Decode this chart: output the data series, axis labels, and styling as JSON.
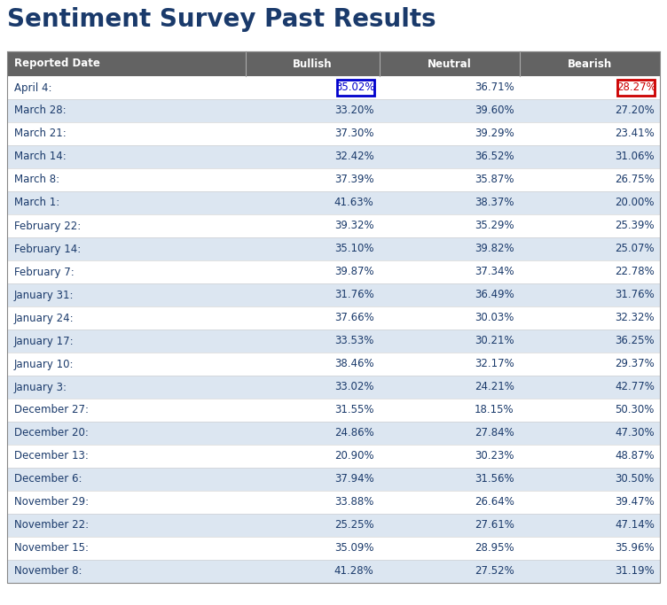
{
  "title": "Sentiment Survey Past Results",
  "title_color": "#1a3a6b",
  "title_fontsize": 20,
  "header": [
    "Reported Date",
    "Bullish",
    "Neutral",
    "Bearish"
  ],
  "header_bg": "#636363",
  "header_text_color": "#ffffff",
  "rows": [
    [
      "April 4:",
      "35.02%",
      "36.71%",
      "28.27%"
    ],
    [
      "March 28:",
      "33.20%",
      "39.60%",
      "27.20%"
    ],
    [
      "March 21:",
      "37.30%",
      "39.29%",
      "23.41%"
    ],
    [
      "March 14:",
      "32.42%",
      "36.52%",
      "31.06%"
    ],
    [
      "March 8:",
      "37.39%",
      "35.87%",
      "26.75%"
    ],
    [
      "March 1:",
      "41.63%",
      "38.37%",
      "20.00%"
    ],
    [
      "February 22:",
      "39.32%",
      "35.29%",
      "25.39%"
    ],
    [
      "February 14:",
      "35.10%",
      "39.82%",
      "25.07%"
    ],
    [
      "February 7:",
      "39.87%",
      "37.34%",
      "22.78%"
    ],
    [
      "January 31:",
      "31.76%",
      "36.49%",
      "31.76%"
    ],
    [
      "January 24:",
      "37.66%",
      "30.03%",
      "32.32%"
    ],
    [
      "January 17:",
      "33.53%",
      "30.21%",
      "36.25%"
    ],
    [
      "January 10:",
      "38.46%",
      "32.17%",
      "29.37%"
    ],
    [
      "January 3:",
      "33.02%",
      "24.21%",
      "42.77%"
    ],
    [
      "December 27:",
      "31.55%",
      "18.15%",
      "50.30%"
    ],
    [
      "December 20:",
      "24.86%",
      "27.84%",
      "47.30%"
    ],
    [
      "December 13:",
      "20.90%",
      "30.23%",
      "48.87%"
    ],
    [
      "December 6:",
      "37.94%",
      "31.56%",
      "30.50%"
    ],
    [
      "November 29:",
      "33.88%",
      "26.64%",
      "39.47%"
    ],
    [
      "November 22:",
      "25.25%",
      "27.61%",
      "47.14%"
    ],
    [
      "November 15:",
      "35.09%",
      "28.95%",
      "35.96%"
    ],
    [
      "November 8:",
      "41.28%",
      "27.52%",
      "31.19%"
    ]
  ],
  "row_colors": [
    "#ffffff",
    "#dce6f1"
  ],
  "text_color": "#1a3a6b",
  "highlight_bullish_row": 0,
  "highlight_bullish_color": "#0000cc",
  "highlight_bearish_row": 0,
  "highlight_bearish_color": "#cc0000",
  "figsize": [
    7.52,
    6.83
  ],
  "dpi": 100
}
